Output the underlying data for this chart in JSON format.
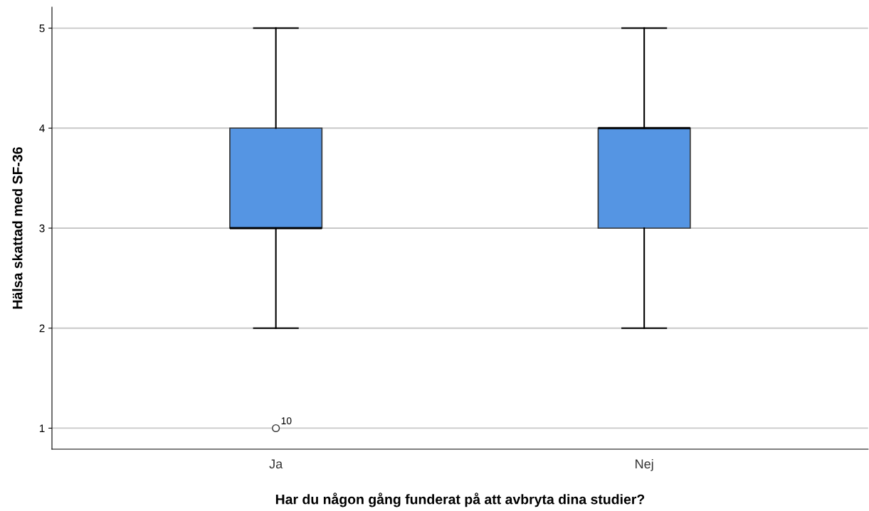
{
  "chart_data": {
    "type": "box",
    "xlabel": "Har du någon gång funderat på att avbryta dina studier?",
    "ylabel": "Hälsa skattad med SF-36",
    "categories": [
      "Ja",
      "Nej"
    ],
    "boxes": [
      {
        "low": 2,
        "q1": 3,
        "median": 3,
        "q3": 4,
        "high": 5,
        "outliers": [
          1
        ]
      },
      {
        "low": 2,
        "q1": 3,
        "median": 4,
        "q3": 4,
        "high": 5
      }
    ],
    "color": "#5595e3",
    "ylim": [
      0.79,
      5.21
    ],
    "yticks": [
      1,
      2,
      3,
      4,
      5
    ],
    "grid": "y",
    "annotations": [
      "10"
    ]
  }
}
